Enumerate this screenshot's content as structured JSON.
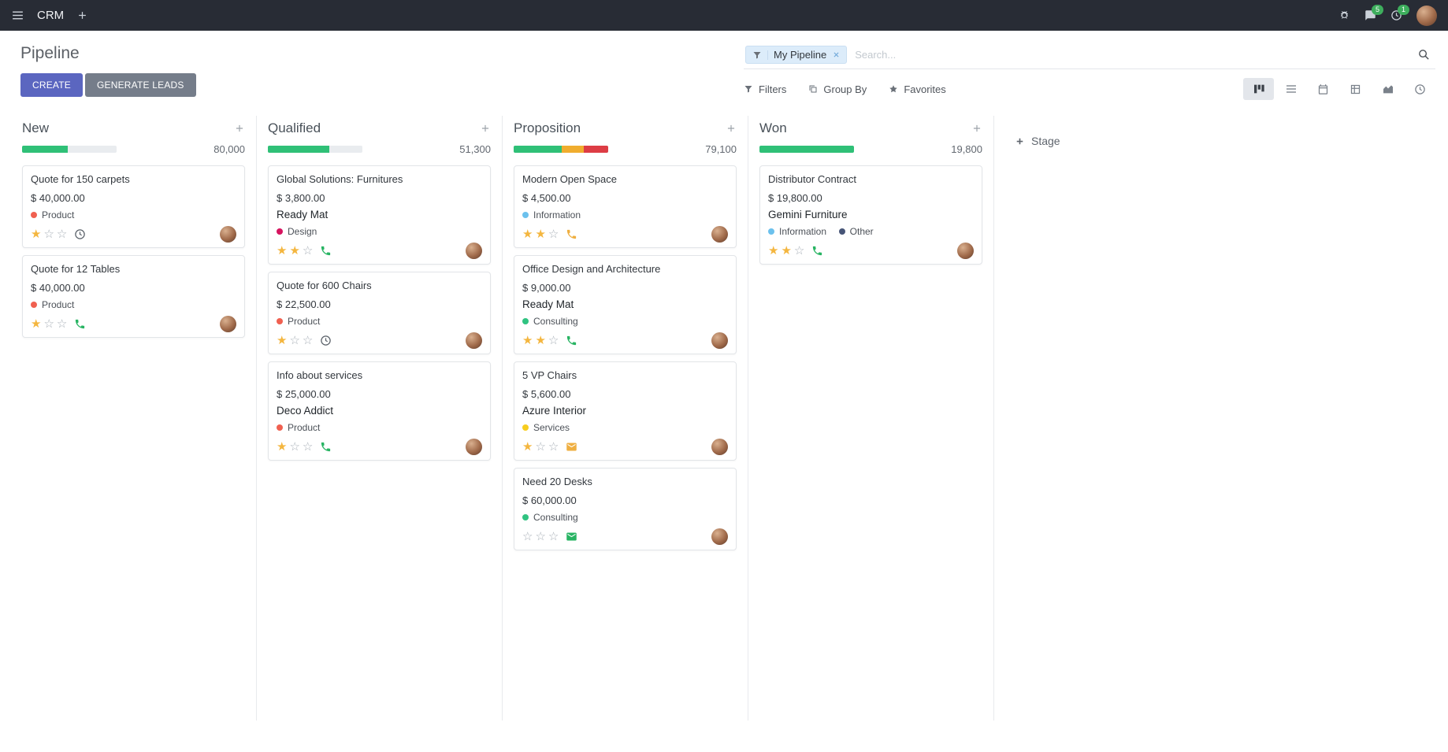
{
  "navbar": {
    "app": "CRM",
    "message_count": "5",
    "activity_count": "1"
  },
  "control_panel": {
    "page_title": "Pipeline",
    "search": {
      "facet_label": "My Pipeline",
      "placeholder": "Search..."
    },
    "actions": {
      "create": "CREATE",
      "generate_leads": "GENERATE LEADS"
    },
    "toolbar": {
      "filters": "Filters",
      "group_by": "Group By",
      "favorites": "Favorites"
    }
  },
  "colors": {
    "accent": "#5b66c0",
    "progress_green": "#2fc077",
    "progress_amber": "#f0ad2e",
    "progress_red": "#dd3d45",
    "activity_green": "#28b463",
    "activity_amber": "#efaf41",
    "badge_green": "#3eae5d"
  },
  "kanban": {
    "add_stage": "Stage",
    "columns": [
      {
        "name": "New",
        "total": "80,000",
        "progress": [
          {
            "color": "#2fc077",
            "pct": 48
          }
        ],
        "cards": [
          {
            "title": "Quote for 150 carpets",
            "amount": "$ 40,000.00",
            "tags": [
              {
                "label": "Product",
                "color": "#f06050"
              }
            ],
            "stars": 1,
            "activity": {
              "type": "clock",
              "color": "#5a6169"
            }
          },
          {
            "title": "Quote for 12 Tables",
            "amount": "$ 40,000.00",
            "tags": [
              {
                "label": "Product",
                "color": "#f06050"
              }
            ],
            "stars": 1,
            "activity": {
              "type": "phone",
              "color": "#28b463"
            }
          }
        ]
      },
      {
        "name": "Qualified",
        "total": "51,300",
        "progress": [
          {
            "color": "#2fc077",
            "pct": 65
          }
        ],
        "cards": [
          {
            "title": "Global Solutions: Furnitures",
            "amount": "$ 3,800.00",
            "partner": "Ready Mat",
            "tags": [
              {
                "label": "Design",
                "color": "#d6145f"
              }
            ],
            "stars": 2,
            "activity": {
              "type": "phone",
              "color": "#28b463"
            }
          },
          {
            "title": "Quote for 600 Chairs",
            "amount": "$ 22,500.00",
            "tags": [
              {
                "label": "Product",
                "color": "#f06050"
              }
            ],
            "stars": 1,
            "activity": {
              "type": "clock",
              "color": "#5a6169"
            }
          },
          {
            "title": "Info about services",
            "amount": "$ 25,000.00",
            "partner": "Deco Addict",
            "tags": [
              {
                "label": "Product",
                "color": "#f06050"
              }
            ],
            "stars": 1,
            "activity": {
              "type": "phone",
              "color": "#28b463"
            }
          }
        ]
      },
      {
        "name": "Proposition",
        "total": "79,100",
        "progress": [
          {
            "color": "#2fc077",
            "pct": 51
          },
          {
            "color": "#f0ad2e",
            "pct": 23
          },
          {
            "color": "#dd3d45",
            "pct": 26
          }
        ],
        "cards": [
          {
            "title": "Modern Open Space",
            "amount": "$ 4,500.00",
            "tags": [
              {
                "label": "Information",
                "color": "#6cc1ed"
              }
            ],
            "stars": 2,
            "activity": {
              "type": "phone",
              "color": "#efaf41"
            }
          },
          {
            "title": "Office Design and Architecture",
            "amount": "$ 9,000.00",
            "partner": "Ready Mat",
            "tags": [
              {
                "label": "Consulting",
                "color": "#30c381"
              }
            ],
            "stars": 2,
            "activity": {
              "type": "phone",
              "color": "#28b463"
            }
          },
          {
            "title": "5 VP Chairs",
            "amount": "$ 5,600.00",
            "partner": "Azure Interior",
            "tags": [
              {
                "label": "Services",
                "color": "#f7cd1f"
              }
            ],
            "stars": 1,
            "activity": {
              "type": "mail",
              "color": "#efaf41"
            }
          },
          {
            "title": "Need 20 Desks",
            "amount": "$ 60,000.00",
            "tags": [
              {
                "label": "Consulting",
                "color": "#30c381"
              }
            ],
            "stars": 0,
            "activity": {
              "type": "mail",
              "color": "#28b463"
            }
          }
        ]
      },
      {
        "name": "Won",
        "total": "19,800",
        "progress": [
          {
            "color": "#2fc077",
            "pct": 100
          }
        ],
        "cards": [
          {
            "title": "Distributor Contract",
            "amount": "$ 19,800.00",
            "partner": "Gemini Furniture",
            "tags": [
              {
                "label": "Information",
                "color": "#6cc1ed"
              },
              {
                "label": "Other",
                "color": "#475577"
              }
            ],
            "stars": 2,
            "activity": {
              "type": "phone",
              "color": "#28b463"
            }
          }
        ]
      }
    ]
  }
}
